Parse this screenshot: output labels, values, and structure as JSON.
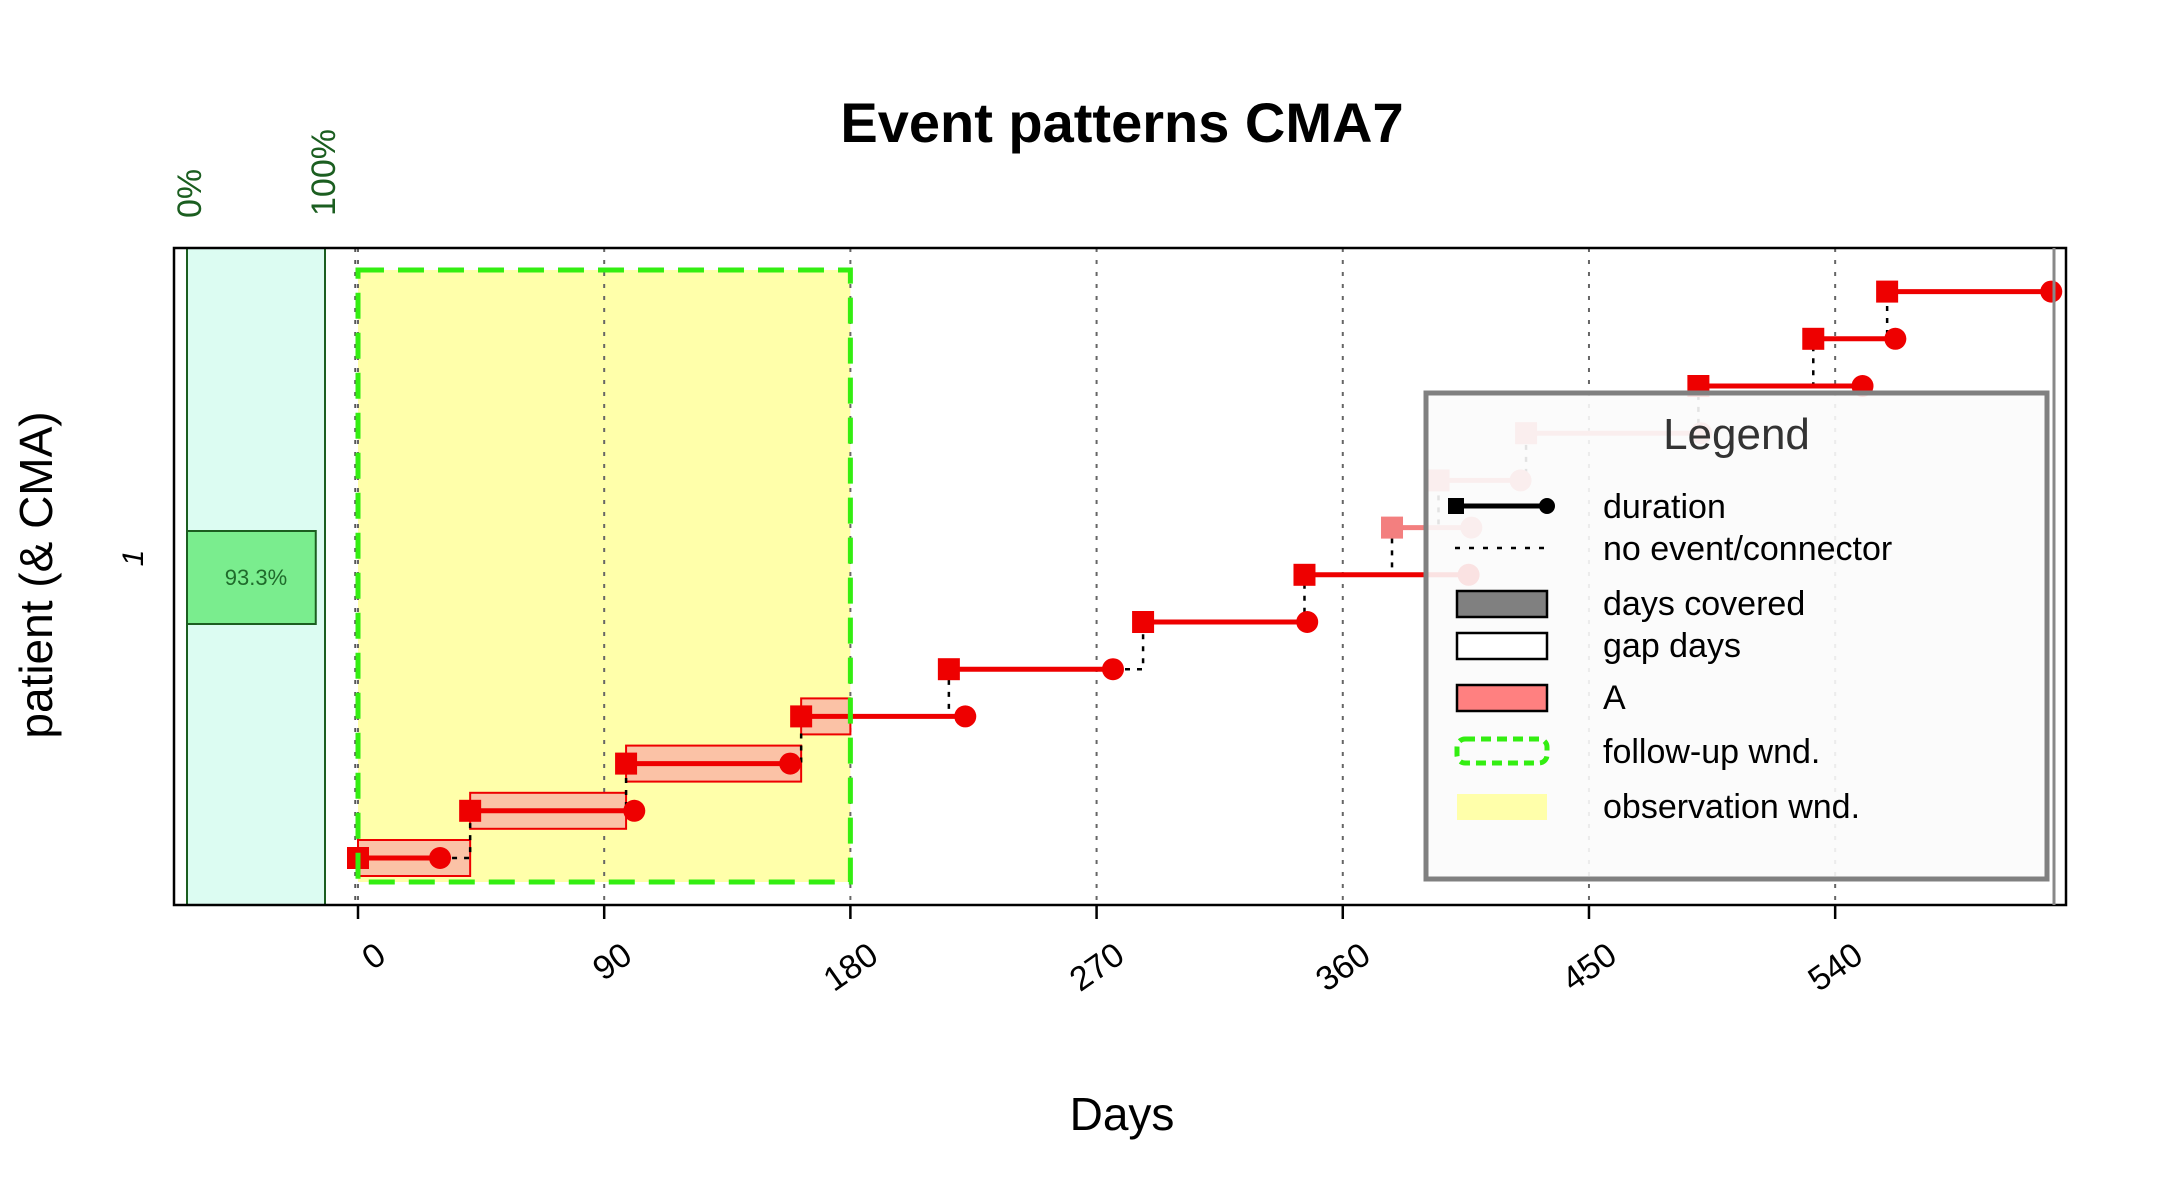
{
  "chart_data": {
    "type": "event-pattern",
    "title": "Event patterns CMA7",
    "xlabel": "Days",
    "ylabel": "patient (& CMA)",
    "patient_label": "1",
    "x_ticks": [
      "0",
      "90",
      "180",
      "270",
      "360",
      "450",
      "540"
    ],
    "x_tick_values": [
      0,
      90,
      180,
      270,
      360,
      450,
      540
    ],
    "xlim": [
      -67,
      625
    ],
    "grid": "vertical dotted at tick values",
    "cma": {
      "scale_labels": [
        "0%",
        "100%"
      ],
      "value": 0.933,
      "value_label": "93.3%"
    },
    "follow_up_window": {
      "start": 0,
      "end": 180
    },
    "observation_window": {
      "start": 0,
      "end": 180
    },
    "events": [
      {
        "start": 0,
        "end": 30,
        "faded": false,
        "covered_end": 41
      },
      {
        "start": 41,
        "end": 101,
        "faded": false,
        "covered_end": 98
      },
      {
        "start": 98,
        "end": 158,
        "faded": false,
        "covered_end": 162
      },
      {
        "start": 162,
        "end": 222,
        "faded": false,
        "covered_end": 180
      },
      {
        "start": 216,
        "end": 276,
        "faded": false
      },
      {
        "start": 287,
        "end": 347,
        "faded": false
      },
      {
        "start": 346,
        "end": 406,
        "faded": false
      },
      {
        "start": 378,
        "end": 407,
        "faded": true
      },
      {
        "start": 395,
        "end": 425,
        "faded": true
      },
      {
        "start": 427,
        "end": 491,
        "faded": true
      },
      {
        "start": 490,
        "end": 550,
        "faded": false
      },
      {
        "start": 532,
        "end": 562,
        "faded": false
      },
      {
        "start": 559,
        "end": 619,
        "faded": false
      }
    ],
    "legend": {
      "title": "Legend",
      "placement": "right",
      "items": [
        {
          "label": "duration",
          "symbol": "duration"
        },
        {
          "label": "no event/connector",
          "symbol": "connector"
        },
        {
          "label": "days covered",
          "symbol": "covered"
        },
        {
          "label": "gap days",
          "symbol": "gap"
        },
        {
          "label": "A",
          "symbol": "med-A"
        },
        {
          "label": "follow-up wnd.",
          "symbol": "followup"
        },
        {
          "label": "observation wnd.",
          "symbol": "observation"
        }
      ]
    },
    "colors": {
      "event": "#ee0000",
      "event_faded": "#f37f7f",
      "coverage_fill": "#fbc2a6",
      "medication_A": "#ff8080",
      "followup_border": "#33ee11",
      "observation_fill": "#ffffaa",
      "cma_panel": "#dcfcf2",
      "cma_bar": "#7aed8e",
      "cma_text": "#1f6b2b"
    }
  }
}
